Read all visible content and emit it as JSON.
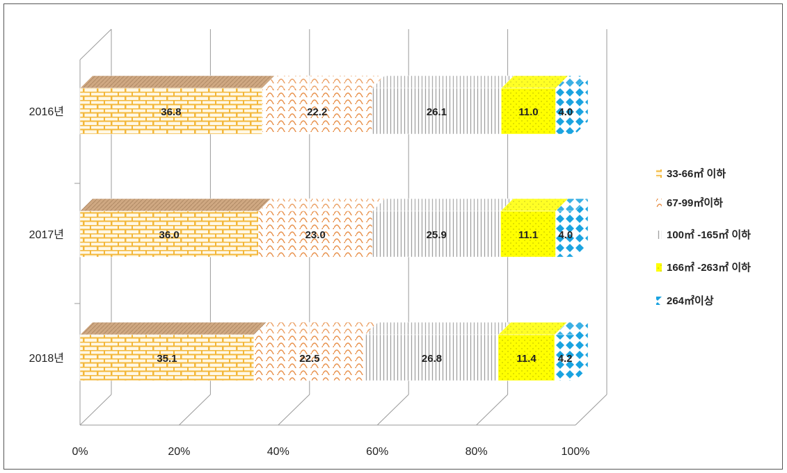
{
  "chart_data": {
    "type": "bar",
    "stacked": "percent",
    "orientation": "horizontal",
    "view": "3d",
    "categories": [
      "2016년",
      "2017년",
      "2018년"
    ],
    "x_ticks": [
      "0%",
      "20%",
      "40%",
      "60%",
      "80%",
      "100%"
    ],
    "xlim": [
      0,
      100
    ],
    "series": [
      {
        "name": "33-66㎡ 이하",
        "values": [
          36.8,
          36.0,
          35.1
        ],
        "color": "#f6c343",
        "pattern": "brick"
      },
      {
        "name": "67-99㎡이하",
        "values": [
          22.2,
          23.0,
          22.5
        ],
        "color": "#e8904a",
        "pattern": "wave"
      },
      {
        "name": "100㎡ -165㎡ 이하",
        "values": [
          26.1,
          25.9,
          26.8
        ],
        "color": "#b0b0b0",
        "pattern": "vertical-lines"
      },
      {
        "name": "166㎡ -263㎡ 이하",
        "values": [
          11.0,
          11.1,
          11.4
        ],
        "color": "#ffff00",
        "pattern": "dots"
      },
      {
        "name": "264㎡이상",
        "values": [
          4.0,
          4.0,
          4.2
        ],
        "color": "#1aa3e0",
        "pattern": "diamonds"
      }
    ],
    "legend": "right",
    "grid": true
  }
}
